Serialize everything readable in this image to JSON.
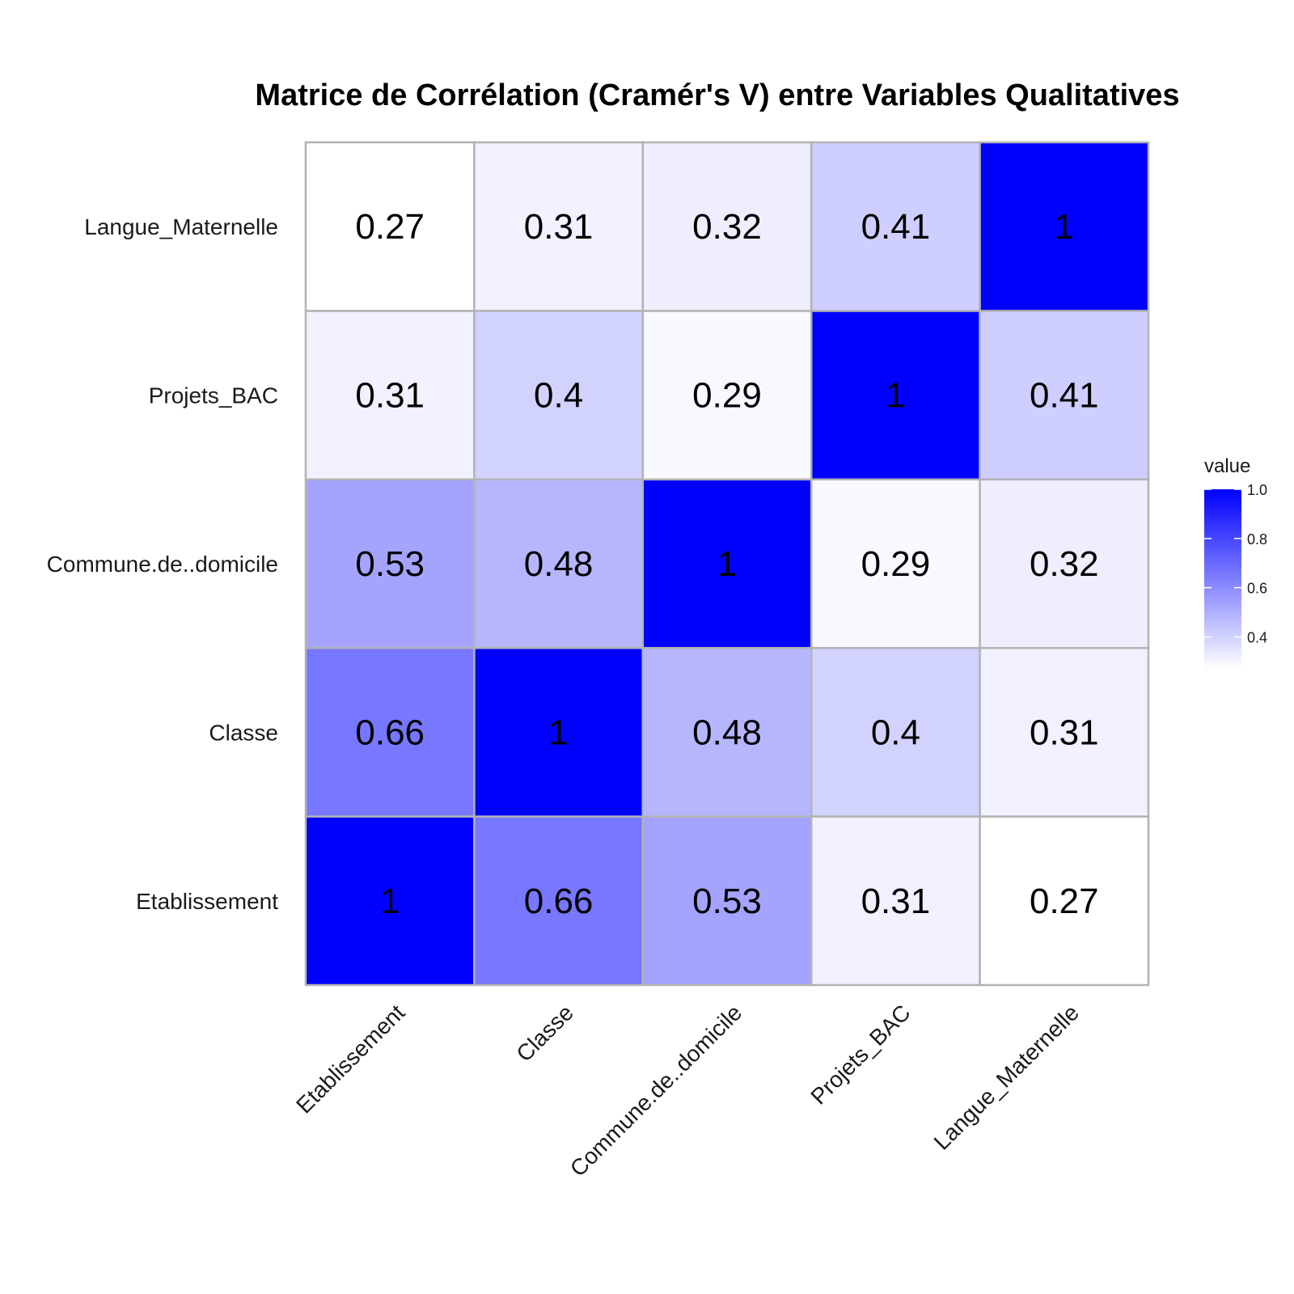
{
  "chart_data": {
    "type": "heatmap",
    "title": "Matrice de Corrélation (Cramér's V) entre Variables Qualitatives",
    "x_categories": [
      "Etablissement",
      "Classe",
      "Commune.de..domicile",
      "Projets_BAC",
      "Langue_Maternelle"
    ],
    "y_categories": [
      "Etablissement",
      "Classe",
      "Commune.de..domicile",
      "Projets_BAC",
      "Langue_Maternelle"
    ],
    "matrix": [
      [
        1,
        0.66,
        0.53,
        0.31,
        0.27
      ],
      [
        0.66,
        1,
        0.48,
        0.4,
        0.31
      ],
      [
        0.53,
        0.48,
        1,
        0.29,
        0.32
      ],
      [
        0.31,
        0.4,
        0.29,
        1,
        0.41
      ],
      [
        0.27,
        0.31,
        0.32,
        0.41,
        1
      ]
    ],
    "labels": [
      [
        "1",
        "0.66",
        "0.53",
        "0.31",
        "0.27"
      ],
      [
        "0.66",
        "1",
        "0.48",
        "0.4",
        "0.31"
      ],
      [
        "0.53",
        "0.48",
        "1",
        "0.29",
        "0.32"
      ],
      [
        "0.31",
        "0.4",
        "0.29",
        "1",
        "0.41"
      ],
      [
        "0.27",
        "0.31",
        "0.32",
        "0.41",
        "1"
      ]
    ],
    "color_scale": {
      "low": "#ffffff",
      "high": "#0000ff",
      "domain": [
        0.27,
        1.0
      ]
    },
    "legend": {
      "title": "value",
      "ticks": [
        "0.4",
        "0.6",
        "0.8",
        "1.0"
      ],
      "tick_values": [
        0.4,
        0.6,
        0.8,
        1.0
      ],
      "placement": "right"
    }
  }
}
